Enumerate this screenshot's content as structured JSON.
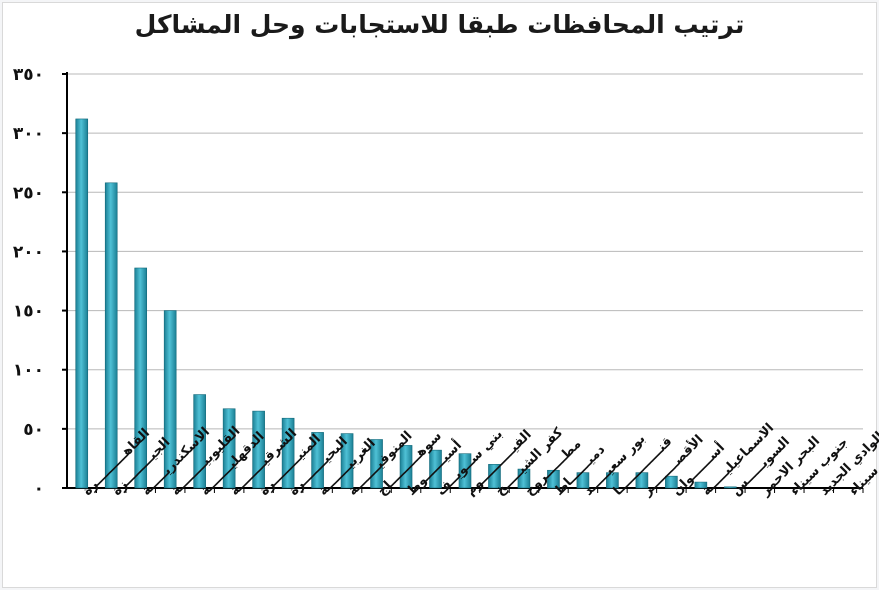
{
  "chart_data": {
    "type": "bar",
    "title": "ترتيب المحافظات طبقا للاستجابات وحل المشاكل",
    "xlabel": "",
    "ylabel": "",
    "ylim": [
      0,
      350
    ],
    "yticks": [
      0,
      50,
      100,
      150,
      200,
      250,
      300,
      350
    ],
    "ytick_labels": [
      "٠",
      "٥٠",
      "١٠٠",
      "١٥٠",
      "٢٠٠",
      "٢٥٠",
      "٣٠٠",
      "٣٥٠"
    ],
    "grid": true,
    "legend": "none",
    "bar_color": "#2aa3bb",
    "categories": [
      "القاهـــــــــرة",
      "الجيــــــــزة",
      "الاسكندريـــــة",
      "القليوبيــــــــة",
      "الدقهليـــــــة",
      "الشرقيــــــــة",
      "المنيــــــــرة",
      "البحيـــــــرة",
      "الغربيـــــــة",
      "المنوفيـــــــة",
      "سوهـــــــــاج",
      "أسيــــــوط",
      "بني ســويــف",
      "الفيــــــــــوم",
      "كفر الشيـــــخ",
      "مطــــــروح",
      "دميــــــاط",
      "بور سعيـــــد",
      "قنـــــــــــــا",
      "الأقصــــــــر",
      "أســــــوان",
      "الاسماعيليـــــة",
      "السويـــــس",
      "البحر الاحمر",
      "جنوب سيناء",
      "الوادي الجديد",
      "شمال سيناء"
    ],
    "values": [
      312,
      258,
      186,
      150,
      79,
      67,
      65,
      59,
      47,
      46,
      41,
      36,
      32,
      29,
      20,
      16,
      15,
      13,
      13,
      13,
      10,
      5,
      1,
      0,
      0,
      0,
      0
    ]
  }
}
